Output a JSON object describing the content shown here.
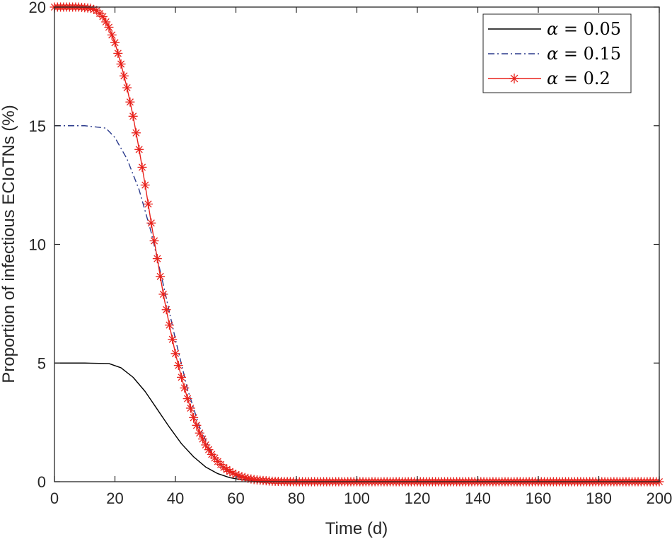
{
  "chart_data": {
    "type": "line",
    "title": "",
    "xlabel": "Time (d)",
    "ylabel": "Proportion of infectious ECIoTNs (%)",
    "xlim": [
      0,
      200
    ],
    "ylim": [
      0,
      20
    ],
    "xticks": [
      0,
      20,
      40,
      60,
      80,
      100,
      120,
      140,
      160,
      180,
      200
    ],
    "yticks": [
      0,
      5,
      10,
      15,
      20
    ],
    "xtick_labels": [
      "0",
      "20",
      "40",
      "60",
      "80",
      "100",
      "120",
      "140",
      "160",
      "180",
      "200"
    ],
    "ytick_labels": [
      "0",
      "5",
      "10",
      "15",
      "20"
    ],
    "grid": false,
    "legend_position": "top-right",
    "series": [
      {
        "name": "α = 0.05",
        "legend_lhs": "α",
        "legend_rhs": "0.05",
        "color": "#000000",
        "style": "solid",
        "marker": "none",
        "x": [
          0,
          10,
          18,
          22,
          26,
          30,
          34,
          38,
          42,
          46,
          50,
          54,
          58,
          62,
          66,
          70,
          75,
          80,
          90,
          100,
          200
        ],
        "y": [
          5,
          5,
          4.98,
          4.8,
          4.4,
          3.8,
          3.05,
          2.3,
          1.6,
          1.05,
          0.62,
          0.34,
          0.17,
          0.08,
          0.03,
          0.01,
          0,
          0,
          0,
          0,
          0
        ]
      },
      {
        "name": "α = 0.15",
        "legend_lhs": "α",
        "legend_rhs": "0.15",
        "color": "#2a3a8c",
        "style": "dashdot",
        "marker": "none",
        "x": [
          0,
          10,
          17,
          20,
          24,
          28,
          32,
          36,
          40,
          44,
          48,
          52,
          56,
          60,
          64,
          68,
          72,
          76,
          80,
          90,
          100,
          200
        ],
        "y": [
          15,
          15,
          14.9,
          14.5,
          13.6,
          12.3,
          10.5,
          8.3,
          6.0,
          3.9,
          2.3,
          1.2,
          0.55,
          0.22,
          0.08,
          0.03,
          0.01,
          0,
          0,
          0,
          0,
          0
        ]
      },
      {
        "name": "α = 0.2",
        "legend_lhs": "α",
        "legend_rhs": "0.2",
        "color": "#e8221c",
        "style": "solid",
        "marker": "asterisk",
        "x": [
          0,
          4,
          8,
          12,
          14,
          16,
          18,
          20,
          22,
          24,
          26,
          28,
          30,
          32,
          34,
          36,
          38,
          40,
          42,
          44,
          46,
          48,
          50,
          52,
          54,
          56,
          58,
          60,
          62,
          64,
          66,
          68,
          70,
          72,
          75,
          80,
          90,
          100,
          120,
          140,
          160,
          180,
          200
        ],
        "y": [
          20,
          20,
          20,
          19.95,
          19.85,
          19.6,
          19.15,
          18.5,
          17.6,
          16.6,
          15.4,
          14.0,
          12.5,
          10.9,
          9.4,
          7.9,
          6.6,
          5.4,
          4.4,
          3.5,
          2.7,
          2.05,
          1.55,
          1.15,
          0.85,
          0.6,
          0.43,
          0.3,
          0.21,
          0.14,
          0.09,
          0.06,
          0.04,
          0.02,
          0.01,
          0,
          0,
          0,
          0,
          0,
          0,
          0,
          0
        ]
      }
    ]
  }
}
